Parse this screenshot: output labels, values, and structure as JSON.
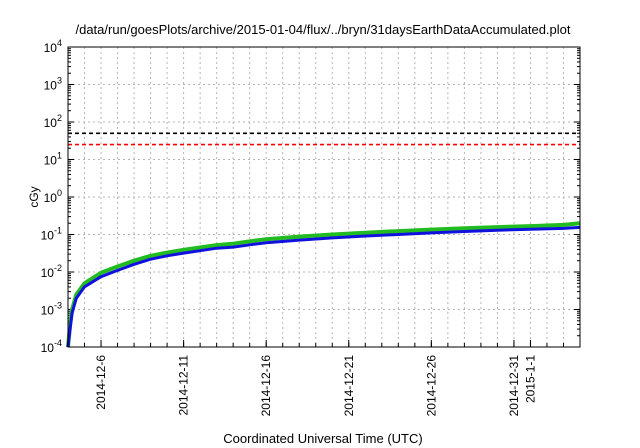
{
  "chart_data": {
    "type": "line",
    "title": "/data/run/goesPlots/archive/2015-01-04/flux/../bryn/31daysEarthDataAccumulated.plot",
    "xlabel": "Coordinated Universal Time (UTC)",
    "ylabel": "cGy",
    "yscale": "log",
    "ylim": [
      0.0001,
      10000
    ],
    "xlim": [
      "2014-12-04",
      "2015-01-04"
    ],
    "grid": true,
    "y_ticks": [
      {
        "value": 0.0001,
        "base": "10",
        "exp": "-4"
      },
      {
        "value": 0.001,
        "base": "10",
        "exp": "-3"
      },
      {
        "value": 0.01,
        "base": "10",
        "exp": "-2"
      },
      {
        "value": 0.1,
        "base": "10",
        "exp": "-1"
      },
      {
        "value": 1,
        "base": "10",
        "exp": "0"
      },
      {
        "value": 10,
        "base": "10",
        "exp": "1"
      },
      {
        "value": 100,
        "base": "10",
        "exp": "2"
      },
      {
        "value": 1000,
        "base": "10",
        "exp": "3"
      },
      {
        "value": 10000,
        "base": "10",
        "exp": "4"
      }
    ],
    "x_ticks": [
      "2014-12-6",
      "2014-12-11",
      "2014-12-16",
      "2014-12-21",
      "2014-12-26",
      "2014-12-31",
      "2015-1-1"
    ],
    "thresholds": [
      {
        "value": 50,
        "color": "#000000"
      },
      {
        "value": 25,
        "color": "#ff0000"
      }
    ],
    "series": [
      {
        "color": "#22bb22",
        "x": [
          "2014-12-04T00:00",
          "2014-12-04T03:00",
          "2014-12-04T06:00",
          "2014-12-04T12:00",
          "2014-12-05T00:00",
          "2014-12-06T00:00",
          "2014-12-07T00:00",
          "2014-12-08T00:00",
          "2014-12-09T00:00",
          "2014-12-10T00:00",
          "2014-12-11T00:00",
          "2014-12-12T00:00",
          "2014-12-13T00:00",
          "2014-12-14T00:00",
          "2014-12-15T00:00",
          "2014-12-16T00:00",
          "2014-12-18T00:00",
          "2014-12-20T00:00",
          "2014-12-22T00:00",
          "2014-12-24T00:00",
          "2014-12-26T00:00",
          "2014-12-28T00:00",
          "2014-12-30T00:00",
          "2015-01-01T00:00",
          "2015-01-03T00:00",
          "2015-01-04T00:00"
        ],
        "values": [
          0.0001,
          0.0004,
          0.001,
          0.0025,
          0.005,
          0.0095,
          0.014,
          0.02,
          0.027,
          0.033,
          0.039,
          0.045,
          0.052,
          0.057,
          0.066,
          0.075,
          0.088,
          0.1,
          0.112,
          0.123,
          0.135,
          0.146,
          0.158,
          0.168,
          0.18,
          0.2
        ]
      },
      {
        "color": "#1111dd",
        "x": [
          "2014-12-04T00:00",
          "2014-12-04T03:00",
          "2014-12-04T06:00",
          "2014-12-04T12:00",
          "2014-12-05T00:00",
          "2014-12-06T00:00",
          "2014-12-07T00:00",
          "2014-12-08T00:00",
          "2014-12-09T00:00",
          "2014-12-10T00:00",
          "2014-12-11T00:00",
          "2014-12-12T00:00",
          "2014-12-13T00:00",
          "2014-12-14T00:00",
          "2014-12-15T00:00",
          "2014-12-16T00:00",
          "2014-12-18T00:00",
          "2014-12-20T00:00",
          "2014-12-22T00:00",
          "2014-12-24T00:00",
          "2014-12-26T00:00",
          "2014-12-28T00:00",
          "2014-12-30T00:00",
          "2015-01-01T00:00",
          "2015-01-03T00:00",
          "2015-01-04T00:00"
        ],
        "values": [
          0.0001,
          0.0003,
          0.0008,
          0.002,
          0.004,
          0.0075,
          0.011,
          0.016,
          0.022,
          0.027,
          0.032,
          0.037,
          0.043,
          0.046,
          0.053,
          0.06,
          0.071,
          0.081,
          0.091,
          0.1,
          0.11,
          0.12,
          0.13,
          0.138,
          0.145,
          0.155
        ]
      }
    ]
  }
}
